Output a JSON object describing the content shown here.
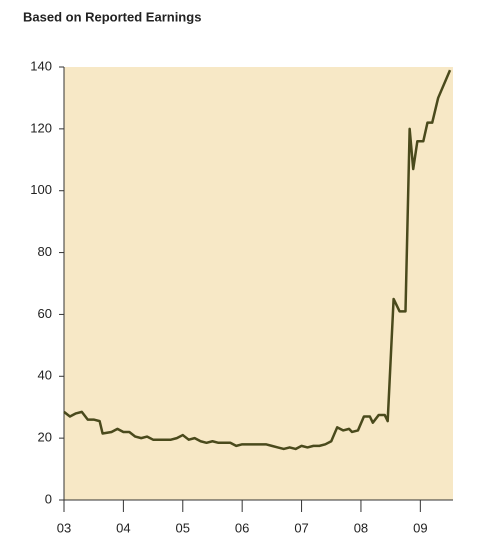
{
  "chart_data": {
    "type": "line",
    "title": "Based on Reported Earnings",
    "x": [
      2003.0,
      2003.1,
      2003.2,
      2003.3,
      2003.4,
      2003.5,
      2003.6,
      2003.65,
      2003.8,
      2003.9,
      2004.0,
      2004.1,
      2004.2,
      2004.3,
      2004.4,
      2004.5,
      2004.6,
      2004.7,
      2004.8,
      2004.9,
      2005.0,
      2005.1,
      2005.2,
      2005.3,
      2005.4,
      2005.5,
      2005.6,
      2005.7,
      2005.8,
      2005.9,
      2006.0,
      2006.1,
      2006.2,
      2006.3,
      2006.4,
      2006.5,
      2006.6,
      2006.7,
      2006.8,
      2006.9,
      2007.0,
      2007.1,
      2007.2,
      2007.3,
      2007.4,
      2007.5,
      2007.6,
      2007.65,
      2007.7,
      2007.8,
      2007.85,
      2007.95,
      2008.05,
      2008.15,
      2008.2,
      2008.3,
      2008.4,
      2008.45,
      2008.55,
      2008.65,
      2008.75,
      2008.82,
      2008.88,
      2008.95,
      2009.05,
      2009.12,
      2009.2,
      2009.3,
      2009.5
    ],
    "series": [
      {
        "color": "#4a4a1c",
        "values": [
          28.5,
          27,
          28,
          28.5,
          26,
          26,
          25.5,
          21.5,
          22,
          23,
          22,
          22,
          20.5,
          20,
          20.5,
          19.5,
          19.5,
          19.5,
          19.5,
          20,
          21,
          19.5,
          20,
          19,
          18.5,
          19,
          18.5,
          18.5,
          18.5,
          17.5,
          18,
          18,
          18,
          18,
          18,
          17.5,
          17,
          16.5,
          17,
          16.5,
          17.5,
          17,
          17.5,
          17.5,
          18,
          19,
          23.5,
          23,
          22.5,
          23,
          22,
          22.5,
          27,
          27,
          25,
          27.5,
          27.5,
          25.5,
          65,
          61,
          61,
          120,
          107,
          116,
          116,
          122,
          122,
          130,
          139
        ]
      }
    ],
    "xlim": [
      2003,
      2009.55
    ],
    "xticks": [
      {
        "value": 2003,
        "label": "03"
      },
      {
        "value": 2004,
        "label": "04"
      },
      {
        "value": 2005,
        "label": "05"
      },
      {
        "value": 2006,
        "label": "06"
      },
      {
        "value": 2007,
        "label": "07"
      },
      {
        "value": 2008,
        "label": "08"
      },
      {
        "value": 2009,
        "label": "09"
      }
    ],
    "ylim": [
      0,
      140
    ],
    "yticks": [
      0,
      20,
      40,
      60,
      80,
      100,
      120,
      140
    ],
    "background": "#f7e8c6",
    "grid": false
  }
}
